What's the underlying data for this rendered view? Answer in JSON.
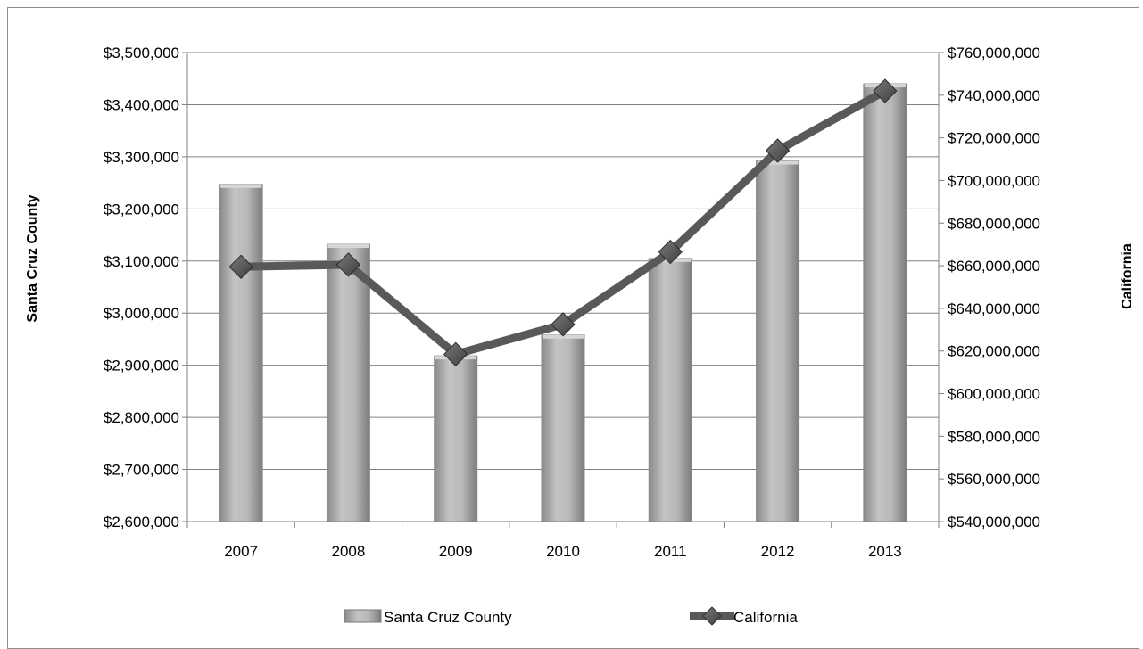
{
  "chart_data": {
    "type": "bar",
    "categories": [
      "2007",
      "2008",
      "2009",
      "2010",
      "2011",
      "2012",
      "2013"
    ],
    "series": [
      {
        "name": "Santa Cruz County",
        "type": "bar",
        "axis": "left",
        "values": [
          3247000,
          3132000,
          2918000,
          2958000,
          3105000,
          3292000,
          3440000
        ]
      },
      {
        "name": "California",
        "type": "line",
        "axis": "right",
        "values": [
          659500000,
          660500000,
          618500000,
          632500000,
          666500000,
          714000000,
          742000000
        ]
      }
    ],
    "ylabel_left": "Santa Cruz County",
    "ylabel_right": "California",
    "ylim_left": [
      2600000,
      3500000
    ],
    "ylim_right": [
      540000000,
      760000000
    ],
    "yticks_left": [
      "$2,600,000",
      "$2,700,000",
      "$2,800,000",
      "$2,900,000",
      "$3,000,000",
      "$3,100,000",
      "$3,200,000",
      "$3,300,000",
      "$3,400,000",
      "$3,500,000"
    ],
    "yticks_right": [
      "$540,000,000",
      "$560,000,000",
      "$580,000,000",
      "$600,000,000",
      "$620,000,000",
      "$640,000,000",
      "$660,000,000",
      "$680,000,000",
      "$700,000,000",
      "$720,000,000",
      "$740,000,000",
      "$760,000,000"
    ],
    "grid": true,
    "legend_position": "bottom",
    "colors": {
      "bar": "#a6a6a6",
      "line": "#595959",
      "marker": "#5a5a5a",
      "grid": "#808080"
    }
  }
}
